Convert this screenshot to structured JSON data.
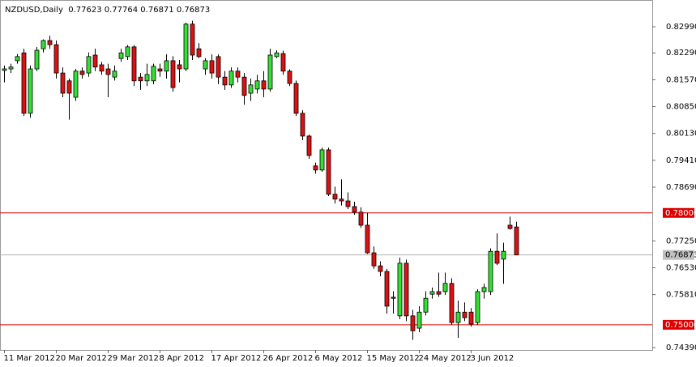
{
  "chart_data": {
    "type": "candlestick",
    "title": "NZDUSD,Daily  0.77623 0.77764 0.76871 0.76873",
    "categories": [
      "11 Mar 2012",
      null,
      null,
      null,
      null,
      null,
      null,
      null,
      "20 Mar 2012",
      null,
      null,
      null,
      null,
      null,
      null,
      null,
      "29 Mar 2012",
      null,
      null,
      null,
      null,
      null,
      null,
      null,
      "8 Apr 2012",
      null,
      null,
      null,
      null,
      null,
      null,
      null,
      "17 Apr 2012",
      null,
      null,
      null,
      null,
      null,
      null,
      null,
      "26 Apr 2012",
      null,
      null,
      null,
      null,
      null,
      null,
      null,
      "6 May 2012",
      null,
      null,
      null,
      null,
      null,
      null,
      null,
      "15 May 2012",
      null,
      null,
      null,
      null,
      null,
      null,
      null,
      "24 May 2012",
      null,
      null,
      null,
      null,
      null,
      null,
      null,
      "3 Jun 2012",
      null,
      null,
      null,
      null,
      null,
      null,
      null
    ],
    "open": [
      0.8182,
      0.8186,
      0.8208,
      0.8229,
      0.8067,
      0.8186,
      0.824,
      0.8262,
      0.8251,
      0.8175,
      0.8154,
      0.811,
      0.818,
      0.8175,
      0.8223,
      0.8197,
      0.8186,
      0.8164,
      0.8214,
      0.8219,
      0.8245,
      0.8164,
      0.8154,
      0.8154,
      0.8186,
      0.818,
      0.8208,
      0.8197,
      0.8186,
      0.8306,
      0.824,
      0.8186,
      0.8208,
      0.8219,
      0.8164,
      0.8143,
      0.818,
      0.8164,
      0.8121,
      0.8132,
      0.8154,
      0.8132,
      0.8219,
      0.8227,
      0.818,
      0.8147,
      0.8067,
      0.8006,
      0.7926,
      0.7915,
      0.7969,
      0.785,
      0.7837,
      0.7832,
      0.7817,
      0.7802,
      0.7767,
      0.7693,
      0.7658,
      0.7643,
      0.7574,
      0.7524,
      0.7665,
      0.7524,
      0.7491,
      0.7534,
      0.7582,
      0.7589,
      0.7589,
      0.7611,
      0.7506,
      0.7534,
      0.7534,
      0.7506,
      0.7589,
      0.7589,
      0.7697,
      0.7676,
      0.7767,
      0.77623
    ],
    "high": [
      0.8195,
      0.82,
      0.8226,
      0.824,
      0.8195,
      0.8245,
      0.8265,
      0.8275,
      0.8262,
      0.819,
      0.816,
      0.8186,
      0.819,
      0.823,
      0.824,
      0.8205,
      0.82,
      0.8195,
      0.824,
      0.825,
      0.825,
      0.8175,
      0.82,
      0.82,
      0.82,
      0.8225,
      0.822,
      0.821,
      0.831,
      0.8315,
      0.8255,
      0.8215,
      0.8225,
      0.8225,
      0.818,
      0.819,
      0.819,
      0.8175,
      0.816,
      0.817,
      0.818,
      0.824,
      0.8236,
      0.8235,
      0.8185,
      0.8155,
      0.8075,
      0.801,
      0.7935,
      0.7975,
      0.7975,
      0.787,
      0.789,
      0.7855,
      0.783,
      0.7815,
      0.78,
      0.771,
      0.767,
      0.765,
      0.759,
      0.768,
      0.7675,
      0.754,
      0.755,
      0.759,
      0.76,
      0.764,
      0.764,
      0.7625,
      0.7565,
      0.756,
      0.7545,
      0.7595,
      0.761,
      0.7705,
      0.7745,
      0.772,
      0.779,
      0.77764
    ],
    "low": [
      0.815,
      0.8175,
      0.82,
      0.806,
      0.8055,
      0.818,
      0.823,
      0.824,
      0.816,
      0.811,
      0.805,
      0.81,
      0.816,
      0.8165,
      0.818,
      0.817,
      0.811,
      0.8155,
      0.8205,
      0.821,
      0.814,
      0.813,
      0.814,
      0.8145,
      0.8165,
      0.816,
      0.8125,
      0.815,
      0.818,
      0.821,
      0.8215,
      0.817,
      0.816,
      0.8145,
      0.813,
      0.8135,
      0.815,
      0.809,
      0.81,
      0.812,
      0.811,
      0.8125,
      0.8215,
      0.817,
      0.814,
      0.806,
      0.7995,
      0.7945,
      0.7905,
      0.791,
      0.7845,
      0.7825,
      0.782,
      0.781,
      0.7795,
      0.776,
      0.769,
      0.765,
      0.763,
      0.753,
      0.753,
      0.7515,
      0.751,
      0.746,
      0.748,
      0.7525,
      0.757,
      0.7575,
      0.758,
      0.75,
      0.7465,
      0.751,
      0.7495,
      0.75,
      0.757,
      0.758,
      0.766,
      0.761,
      0.7755,
      0.76871
    ],
    "close": [
      0.8186,
      0.8191,
      0.8219,
      0.8067,
      0.8186,
      0.8236,
      0.8262,
      0.8251,
      0.8175,
      0.8121,
      0.8121,
      0.818,
      0.8171,
      0.8219,
      0.8191,
      0.818,
      0.8171,
      0.818,
      0.8229,
      0.8245,
      0.8154,
      0.8154,
      0.8171,
      0.8193,
      0.818,
      0.8208,
      0.8136,
      0.8186,
      0.8306,
      0.8223,
      0.8219,
      0.8208,
      0.8175,
      0.8164,
      0.8143,
      0.818,
      0.8164,
      0.8115,
      0.8143,
      0.8154,
      0.8132,
      0.8223,
      0.8229,
      0.818,
      0.8147,
      0.8067,
      0.8006,
      0.7954,
      0.7915,
      0.7969,
      0.785,
      0.7837,
      0.7832,
      0.7817,
      0.7802,
      0.7767,
      0.7693,
      0.7658,
      0.7643,
      0.755,
      0.7571,
      0.7665,
      0.7524,
      0.7484,
      0.7534,
      0.7571,
      0.7589,
      0.7582,
      0.7611,
      0.7506,
      0.7534,
      0.7519,
      0.7502,
      0.7589,
      0.76,
      0.7697,
      0.7665,
      0.7697,
      0.7758,
      0.76873
    ],
    "up_color": "#33e033",
    "down_color": "#dd1111",
    "ylim": [
      0.74325,
      0.83707
    ],
    "yticks": [
      {
        "value": 0.8299,
        "label": "0.82990"
      },
      {
        "value": 0.8229,
        "label": "0.82290"
      },
      {
        "value": 0.8157,
        "label": "0.81570"
      },
      {
        "value": 0.8085,
        "label": "0.80850"
      },
      {
        "value": 0.8013,
        "label": "0.80130"
      },
      {
        "value": 0.7941,
        "label": "0.79410"
      },
      {
        "value": 0.7869,
        "label": "0.78690"
      },
      {
        "value": 0.7725,
        "label": "0.77250"
      },
      {
        "value": 0.7653,
        "label": "0.76530"
      },
      {
        "value": 0.7581,
        "label": "0.75810"
      },
      {
        "value": 0.7439,
        "label": "0.74390"
      }
    ],
    "levels": [
      {
        "value": 0.78,
        "label": "0.78000"
      },
      {
        "value": 0.75,
        "label": "0.75000"
      }
    ],
    "level_color": "#dd0000",
    "last_price": {
      "value": 0.76873,
      "label": "0.76873"
    }
  }
}
